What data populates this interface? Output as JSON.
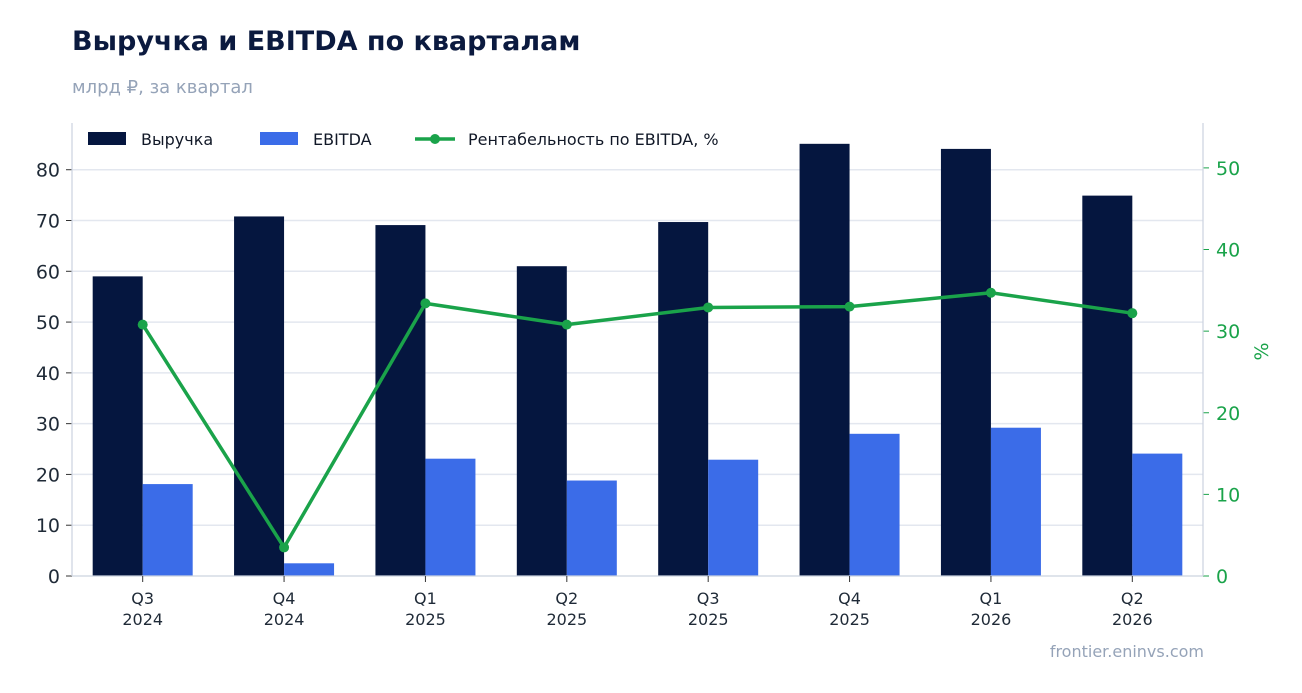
{
  "header": {
    "title": "Выручка и EBITDA по кварталам",
    "subtitle": "млрд ₽, за квартал",
    "source": "frontier.eninvs.com"
  },
  "colors": {
    "revenue": "#05163f",
    "ebitda": "#3b6ce8",
    "margin": "#1aa34a",
    "grid": "#e3e7ef",
    "axis": "#ccd3df"
  },
  "chart_data": {
    "type": "bar",
    "categories": [
      [
        "Q3",
        "2024"
      ],
      [
        "Q4",
        "2024"
      ],
      [
        "Q1",
        "2025"
      ],
      [
        "Q2",
        "2025"
      ],
      [
        "Q3",
        "2025"
      ],
      [
        "Q4",
        "2025"
      ],
      [
        "Q1",
        "2026"
      ],
      [
        "Q2",
        "2026"
      ]
    ],
    "series": [
      {
        "name": "Выручка",
        "kind": "bar",
        "axis": "left",
        "values": [
          59.0,
          70.8,
          69.1,
          61.0,
          69.7,
          85.1,
          84.1,
          74.9
        ]
      },
      {
        "name": "EBITDA",
        "kind": "bar",
        "axis": "left",
        "values": [
          18.1,
          2.5,
          23.1,
          18.8,
          22.9,
          28.0,
          29.2,
          24.1
        ]
      },
      {
        "name": "Рентабельность по EBITDA, %",
        "kind": "line",
        "axis": "right",
        "values": [
          30.8,
          3.5,
          33.4,
          30.8,
          32.9,
          33.0,
          34.7,
          32.2
        ]
      }
    ],
    "left_axis": {
      "ylim": [
        0,
        89.2
      ],
      "ticks": [
        0,
        10,
        20,
        30,
        40,
        50,
        60,
        70,
        80
      ]
    },
    "right_axis": {
      "ylabel": "%",
      "ylim": [
        0,
        55.5
      ],
      "ticks": [
        0,
        10,
        20,
        30,
        40,
        50
      ]
    },
    "legend": "top-left",
    "grid": true
  }
}
